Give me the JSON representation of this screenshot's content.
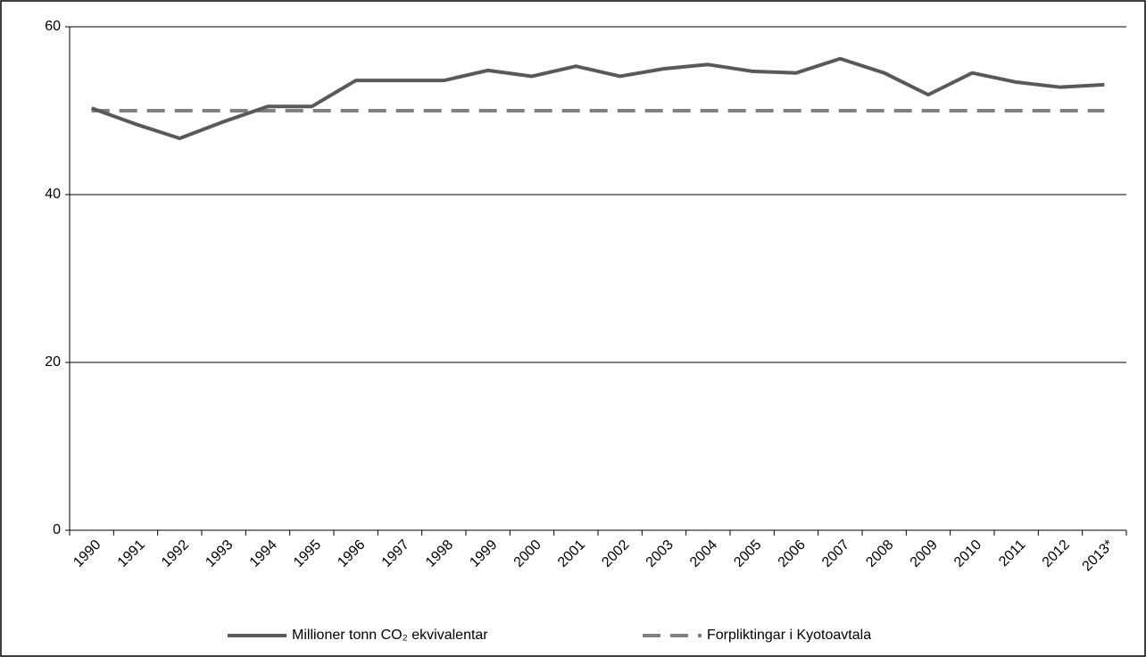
{
  "chart_data": {
    "type": "line",
    "categories": [
      "1990",
      "1991",
      "1992",
      "1993",
      "1994",
      "1995",
      "1996",
      "1997",
      "1998",
      "1999",
      "2000",
      "2001",
      "2002",
      "2003",
      "2004",
      "2005",
      "2006",
      "2007",
      "2008",
      "2009",
      "2010",
      "2011",
      "2012",
      "2013*"
    ],
    "series": [
      {
        "name": "Millioner tonn CO₂ ekvivalentar",
        "color": "#595959",
        "dashed": false,
        "values": [
          50.3,
          48.4,
          46.7,
          48.7,
          50.5,
          50.5,
          53.6,
          53.6,
          53.6,
          54.8,
          54.1,
          55.3,
          54.1,
          55.0,
          55.5,
          54.7,
          54.5,
          56.2,
          54.5,
          51.9,
          54.5,
          53.4,
          52.8,
          53.1
        ]
      },
      {
        "name": "Forpliktingar i Kyotoavtala",
        "color": "#808080",
        "dashed": true,
        "values": [
          50,
          50,
          50,
          50,
          50,
          50,
          50,
          50,
          50,
          50,
          50,
          50,
          50,
          50,
          50,
          50,
          50,
          50,
          50,
          50,
          50,
          50,
          50,
          50
        ]
      }
    ],
    "ylim": [
      0,
      60
    ],
    "yticks": [
      0,
      20,
      40,
      60
    ],
    "grid": true,
    "legend": "bottom"
  }
}
